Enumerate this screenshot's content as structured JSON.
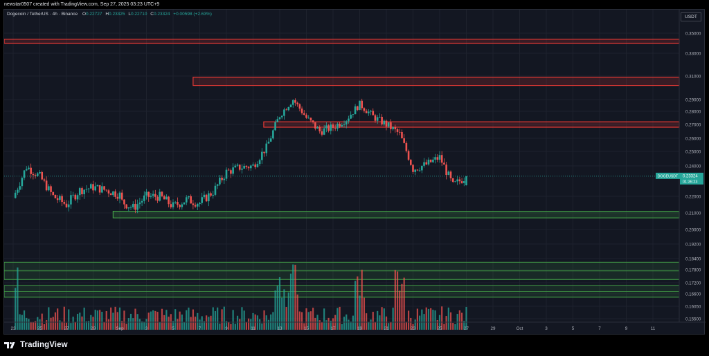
{
  "header": {
    "attribution": "newstar0507 created with TradingView.com, Sep 27, 2025 03:23 UTC+9"
  },
  "legend": {
    "symbol_line": "Dogecoin / TetherUS · 4h · Binance",
    "open_label": "O",
    "open": "0.22727",
    "high_label": "H",
    "high": "0.23325",
    "low_label": "L",
    "low": "0.22710",
    "close_label": "C",
    "close": "0.23324",
    "change": "+0.00598 (+2.63%)"
  },
  "currency_button": "USDT",
  "price_tag": {
    "symbol": "DOGEUSDT",
    "price": "0.23324",
    "countdown": "01:36:23"
  },
  "footer": {
    "brand": "TradingView"
  },
  "colors": {
    "up": "#26a69a",
    "down": "#ef5350",
    "resistance": "#e53935",
    "support": "#43a047",
    "background": "#131722",
    "tag": "#26a69a"
  },
  "chart_data": {
    "type": "candlestick",
    "symbol": "DOGEUSDT",
    "timeframe": "4h",
    "price_axis_ticks": [
      "0.35000",
      "0.33000",
      "0.31000",
      "0.29000",
      "0.28000",
      "0.27000",
      "0.26000",
      "0.25000",
      "0.24000",
      "0.22000",
      "0.21000",
      "0.20000",
      "0.19200",
      "0.18400",
      "0.17800",
      "0.17200",
      "0.16600",
      "0.16050",
      "0.15500"
    ],
    "date_axis_ticks": [
      "23",
      "25",
      "27",
      "29",
      "Sep",
      "3",
      "5",
      "7",
      "9",
      "11",
      "13",
      "15",
      "17",
      "19",
      "21",
      "23",
      "25",
      "27",
      "29",
      "Oct",
      "3",
      "5",
      "7",
      "9",
      "11"
    ],
    "resistance_zones": [
      [
        0.34,
        0.344
      ],
      [
        0.302,
        0.309
      ],
      [
        0.268,
        0.272
      ]
    ],
    "support_zones": [
      [
        0.207,
        0.211
      ]
    ],
    "volume_zones": [
      [
        0.1735,
        0.182
      ],
      [
        0.1645,
        0.1705
      ]
    ],
    "close_path": [
      {
        "date": "Aug 23",
        "close": 0.219
      },
      {
        "date": "Aug 24",
        "close": 0.2395
      },
      {
        "date": "Aug 25",
        "close": 0.233
      },
      {
        "date": "Aug 26",
        "close": 0.22
      },
      {
        "date": "Aug 27",
        "close": 0.215
      },
      {
        "date": "Aug 28",
        "close": 0.224
      },
      {
        "date": "Aug 29",
        "close": 0.226
      },
      {
        "date": "Aug 30",
        "close": 0.224
      },
      {
        "date": "Aug 31",
        "close": 0.221
      },
      {
        "date": "Sep 1",
        "close": 0.2175
      },
      {
        "date": "Sep 2",
        "close": 0.213
      },
      {
        "date": "Sep 3",
        "close": 0.22
      },
      {
        "date": "Sep 4",
        "close": 0.22
      },
      {
        "date": "Sep 5",
        "close": 0.214
      },
      {
        "date": "Sep 6",
        "close": 0.218
      },
      {
        "date": "Sep 7",
        "close": 0.216
      },
      {
        "date": "Sep 8",
        "close": 0.223
      },
      {
        "date": "Sep 9",
        "close": 0.236
      },
      {
        "date": "Sep 10",
        "close": 0.239
      },
      {
        "date": "Sep 11",
        "close": 0.24
      },
      {
        "date": "Sep 12",
        "close": 0.253
      },
      {
        "date": "Sep 13",
        "close": 0.277
      },
      {
        "date": "Sep 14",
        "close": 0.29
      },
      {
        "date": "Sep 15",
        "close": 0.275
      },
      {
        "date": "Sep 16",
        "close": 0.265
      },
      {
        "date": "Sep 17",
        "close": 0.268
      },
      {
        "date": "Sep 18",
        "close": 0.274
      },
      {
        "date": "Sep 19",
        "close": 0.286
      },
      {
        "date": "Sep 20",
        "close": 0.276
      },
      {
        "date": "Sep 21",
        "close": 0.27
      },
      {
        "date": "Sep 22",
        "close": 0.263
      },
      {
        "date": "Sep 23",
        "close": 0.238
      },
      {
        "date": "Sep 24",
        "close": 0.241
      },
      {
        "date": "Sep 25",
        "close": 0.246
      },
      {
        "date": "Sep 26",
        "close": 0.227
      },
      {
        "date": "Sep 27",
        "close": 0.2332
      }
    ],
    "volume_spike_dates": [
      "Aug 23",
      "Sep 13",
      "Sep 14",
      "Sep 19",
      "Sep 22"
    ]
  }
}
